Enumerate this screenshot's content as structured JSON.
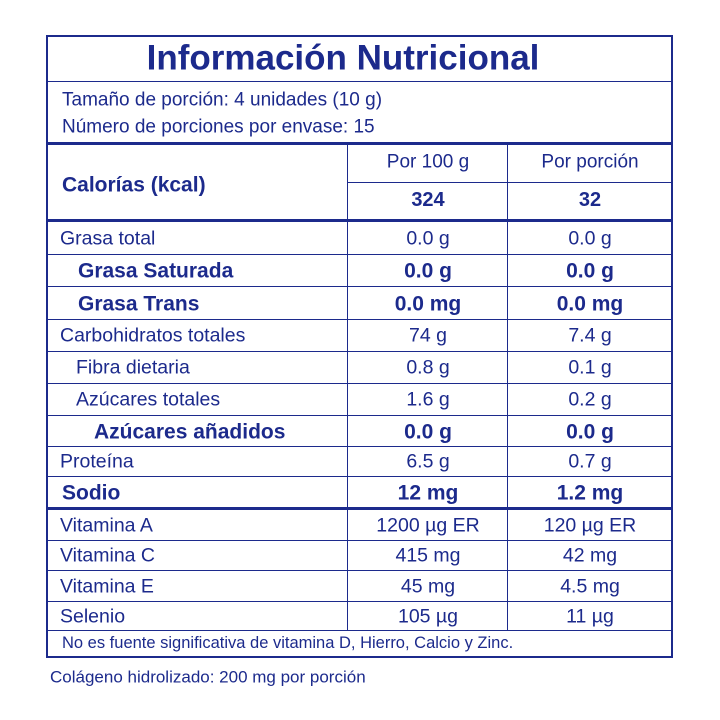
{
  "title": "Información Nutricional",
  "serving": [
    "Tamaño de porción: 4 unidades (10 g)",
    "Número de porciones por envase: 15"
  ],
  "columns": [
    "Por 100 g",
    "Por porción"
  ],
  "calories": {
    "label": "Calorías (kcal)",
    "values": [
      "324",
      "32"
    ]
  },
  "rows": [
    {
      "label": "Grasa total",
      "values": [
        "0.0 g",
        "0.0 g"
      ]
    },
    {
      "label": "Grasa Saturada",
      "values": [
        "0.0 g",
        "0.0 g"
      ]
    },
    {
      "label": "Grasa Trans",
      "values": [
        "0.0 mg",
        "0.0 mg"
      ]
    },
    {
      "label": "Carbohidratos totales",
      "values": [
        "74 g",
        "7.4 g"
      ]
    },
    {
      "label": "Fibra dietaria",
      "values": [
        "0.8 g",
        "0.1 g"
      ]
    },
    {
      "label": "Azúcares totales",
      "values": [
        "1.6 g",
        "0.2 g"
      ]
    },
    {
      "label": "Azúcares añadidos",
      "values": [
        "0.0 g",
        "0.0 g"
      ]
    },
    {
      "label": "Proteína",
      "values": [
        "6.5 g",
        "0.7 g"
      ]
    },
    {
      "label": "Sodio",
      "values": [
        "12 mg",
        "1.2 mg"
      ]
    }
  ],
  "vitamins": [
    {
      "label": "Vitamina A",
      "values": [
        "1200 µg ER",
        "120 µg ER"
      ]
    },
    {
      "label": "Vitamina C",
      "values": [
        "415 mg",
        "42 mg"
      ]
    },
    {
      "label": "Vitamina E",
      "values": [
        "45 mg",
        "4.5 mg"
      ]
    },
    {
      "label": "Selenio",
      "values": [
        "105 µg",
        "11 µg"
      ]
    }
  ],
  "footnote": "No es fuente significativa de vitamina D, Hierro, Calcio y Zinc.",
  "note": "Colágeno hidrolizado: 200 mg por porción"
}
